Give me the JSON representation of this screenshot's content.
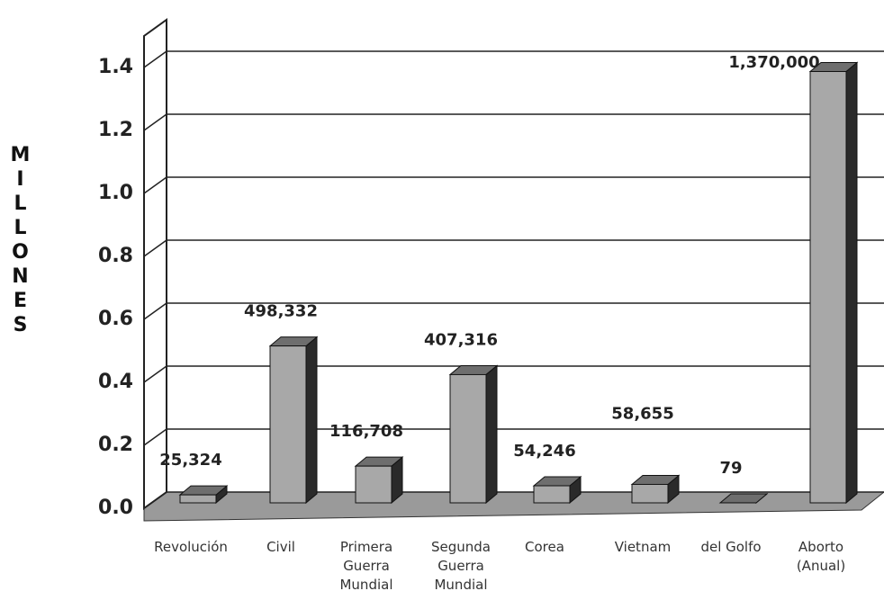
{
  "chart_data": {
    "type": "bar3d",
    "y_label": "MILLONES",
    "categories": [
      "Revolución",
      "Civil",
      "Primera\nGuerra\nMundial",
      "Segunda\nGuerra\nMundial",
      "Corea",
      "Vietnam",
      "del Golfo",
      "Aborto\n(Anual)"
    ],
    "values": [
      0.025324,
      0.498332,
      0.116708,
      0.407316,
      0.054246,
      0.058655,
      7.9e-05,
      1.37
    ],
    "value_labels": [
      "25,324",
      "498,332",
      "116,708",
      "407,316",
      "54,246",
      "58,655",
      "79",
      "1,370,000"
    ],
    "color": "#a8a8a8",
    "ylim": [
      0,
      1.5
    ],
    "yticks": [
      {
        "value": 0,
        "label": "0.0"
      },
      0.2,
      0.4,
      0.6,
      0.8,
      {
        "value": 1,
        "label": "1.0"
      },
      1.2,
      1.4
    ],
    "grid": true
  }
}
